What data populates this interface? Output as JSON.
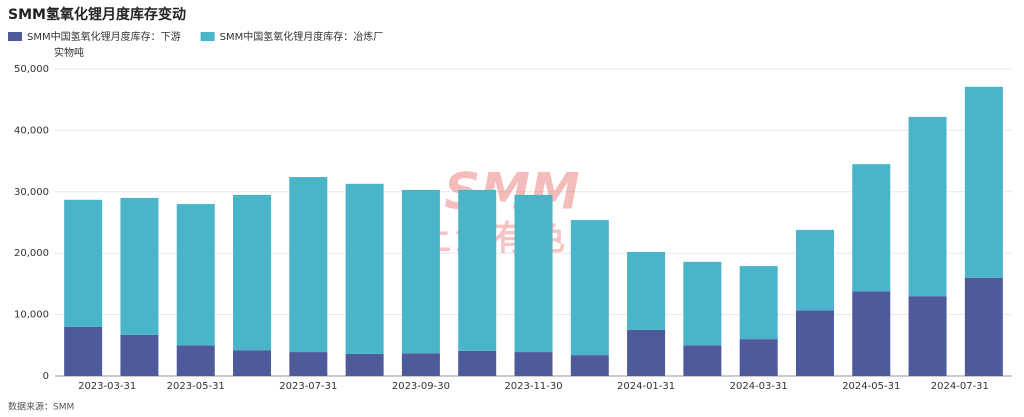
{
  "chart_data": {
    "type": "bar",
    "stacked": true,
    "title": "SMM氢氧化锂月度库存变动",
    "y_axis_label": "实物吨",
    "source": "数据来源：SMM",
    "watermark": [
      "SMM",
      "上海有色网"
    ],
    "categories": [
      "2023-03-31",
      null,
      "2023-05-31",
      null,
      "2023-07-31",
      null,
      "2023-09-30",
      null,
      "2023-11-30",
      null,
      "2024-01-31",
      null,
      "2024-03-31",
      null,
      "2024-05-31",
      null,
      "2024-07-31"
    ],
    "series": [
      {
        "name": "SMM中国氢氧化锂月度库存：下游",
        "color": "#4e5a9a",
        "values": [
          8000,
          6700,
          5000,
          4200,
          3900,
          3600,
          3700,
          4100,
          3900,
          3400,
          7500,
          5000,
          6000,
          10700,
          13800,
          13000,
          16000
        ]
      },
      {
        "name": "SMM中国氢氧化锂月度库存：冶炼厂",
        "color": "#4ab4c8",
        "values": [
          20700,
          22300,
          23000,
          25300,
          28500,
          27700,
          26600,
          26200,
          25600,
          22000,
          12700,
          13600,
          11900,
          13100,
          20700,
          29200,
          31100
        ]
      }
    ],
    "ylim": [
      0,
      50000
    ],
    "yticks": [
      0,
      {
        "value": 10000,
        "label": "10,000"
      },
      {
        "value": 20000,
        "label": "20,000"
      },
      {
        "value": 30000,
        "label": "30,000"
      },
      {
        "value": 40000,
        "label": "40,000"
      },
      {
        "value": 50000,
        "label": "50,000"
      }
    ],
    "grid": true
  }
}
